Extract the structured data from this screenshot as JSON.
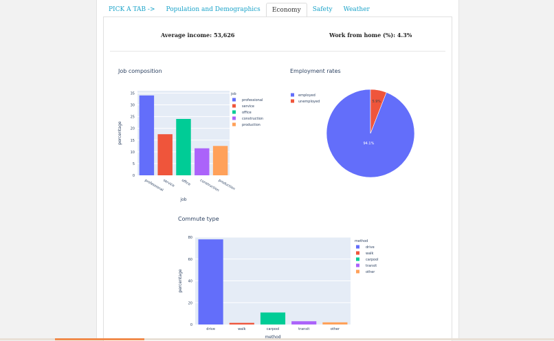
{
  "tabs": [
    {
      "label": "PICK A TAB ->",
      "active": false
    },
    {
      "label": "Population and Demographics",
      "active": false
    },
    {
      "label": "Economy",
      "active": true
    },
    {
      "label": "Safety",
      "active": false
    },
    {
      "label": "Weather",
      "active": false
    }
  ],
  "kpis": {
    "income": "Average income: 53,626",
    "wfh": "Work from home (%): 4.3%"
  },
  "colors": {
    "series": [
      "#636efa",
      "#ef553b",
      "#00cc96",
      "#ab63fa",
      "#ffa15a"
    ],
    "plot_bg": "#e5ecf6",
    "tab_link": "#1aa3c9"
  },
  "chart_data": [
    {
      "id": "job",
      "type": "bar",
      "title": "Job composition",
      "xlabel": "job",
      "ylabel": "percentage",
      "legend_title": "job",
      "categories": [
        "professional",
        "service",
        "office",
        "construction",
        "production"
      ],
      "values": [
        34,
        17.5,
        24,
        11.5,
        12.5
      ],
      "ylim": [
        0,
        36
      ],
      "yticks": [
        0,
        5,
        10,
        15,
        20,
        25,
        30,
        35
      ]
    },
    {
      "id": "employment",
      "type": "pie",
      "title": "Employment rates",
      "labels": [
        "employed",
        "unemployed"
      ],
      "values": [
        94.1,
        5.9
      ],
      "slice_labels": [
        "94.1%",
        "5.9%"
      ]
    },
    {
      "id": "commute",
      "type": "bar",
      "title": "Commute type",
      "xlabel": "method",
      "ylabel": "percentage",
      "legend_title": "method",
      "categories": [
        "drive",
        "walk",
        "carpool",
        "transit",
        "other"
      ],
      "values": [
        78,
        1.5,
        11,
        3,
        2
      ],
      "ylim": [
        0,
        80
      ],
      "yticks": [
        0,
        20,
        40,
        60,
        80
      ]
    }
  ]
}
